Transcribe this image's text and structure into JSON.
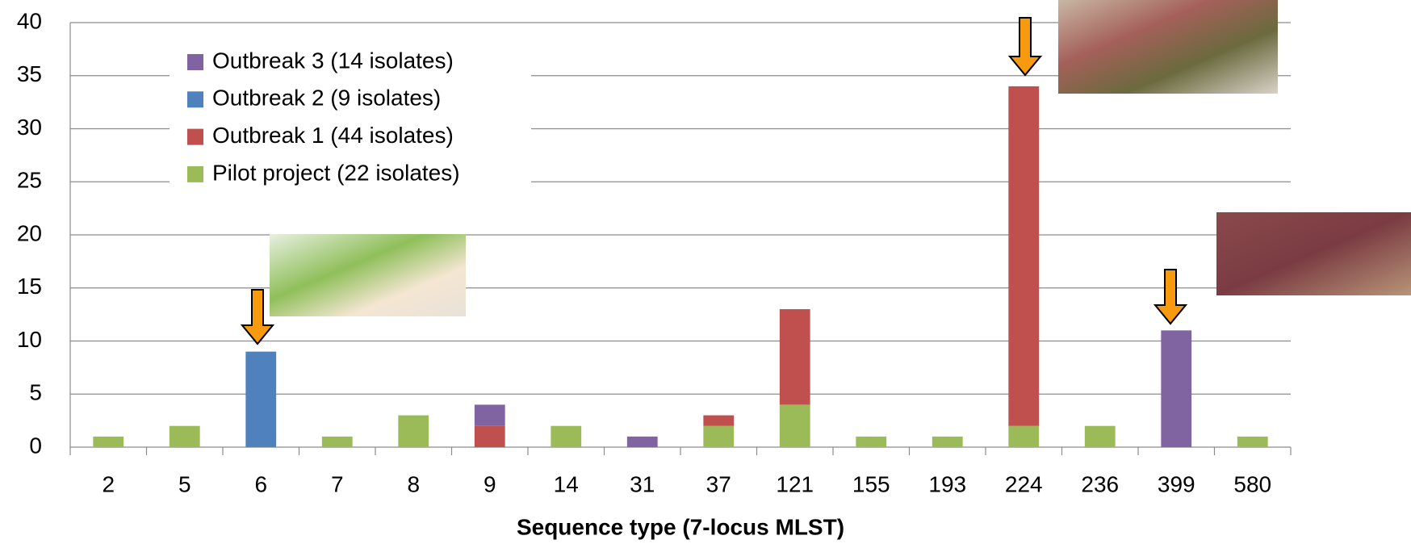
{
  "chart_data": {
    "type": "stacked_bar",
    "x_label": "Sequence type (7-locus MLST)",
    "categories": [
      "2",
      "5",
      "6",
      "7",
      "8",
      "9",
      "14",
      "31",
      "37",
      "121",
      "155",
      "193",
      "224",
      "236",
      "399",
      "580"
    ],
    "series": [
      {
        "name": "Pilot project (22 isolates)",
        "color": "#9bbb59",
        "values": [
          1,
          2,
          0,
          1,
          3,
          0,
          2,
          0,
          2,
          4,
          1,
          1,
          2,
          2,
          0,
          1
        ]
      },
      {
        "name": "Outbreak 1 (44 isolates)",
        "color": "#c0504d",
        "values": [
          0,
          0,
          0,
          0,
          0,
          2,
          0,
          0,
          1,
          9,
          0,
          0,
          32,
          0,
          0,
          0
        ]
      },
      {
        "name": "Outbreak 2 (9 isolates)",
        "color": "#4f81bd",
        "values": [
          0,
          0,
          9,
          0,
          0,
          0,
          0,
          0,
          0,
          0,
          0,
          0,
          0,
          0,
          0,
          0
        ]
      },
      {
        "name": "Outbreak 3 (14 isolates)",
        "color": "#8064a2",
        "values": [
          0,
          0,
          0,
          0,
          0,
          2,
          0,
          1,
          0,
          0,
          0,
          0,
          0,
          0,
          11,
          0
        ]
      }
    ],
    "ylim": [
      0,
      40
    ],
    "yticks": [
      0,
      5,
      10,
      15,
      20,
      25,
      30,
      35,
      40
    ],
    "grid": true,
    "legend": "upper left"
  }
}
